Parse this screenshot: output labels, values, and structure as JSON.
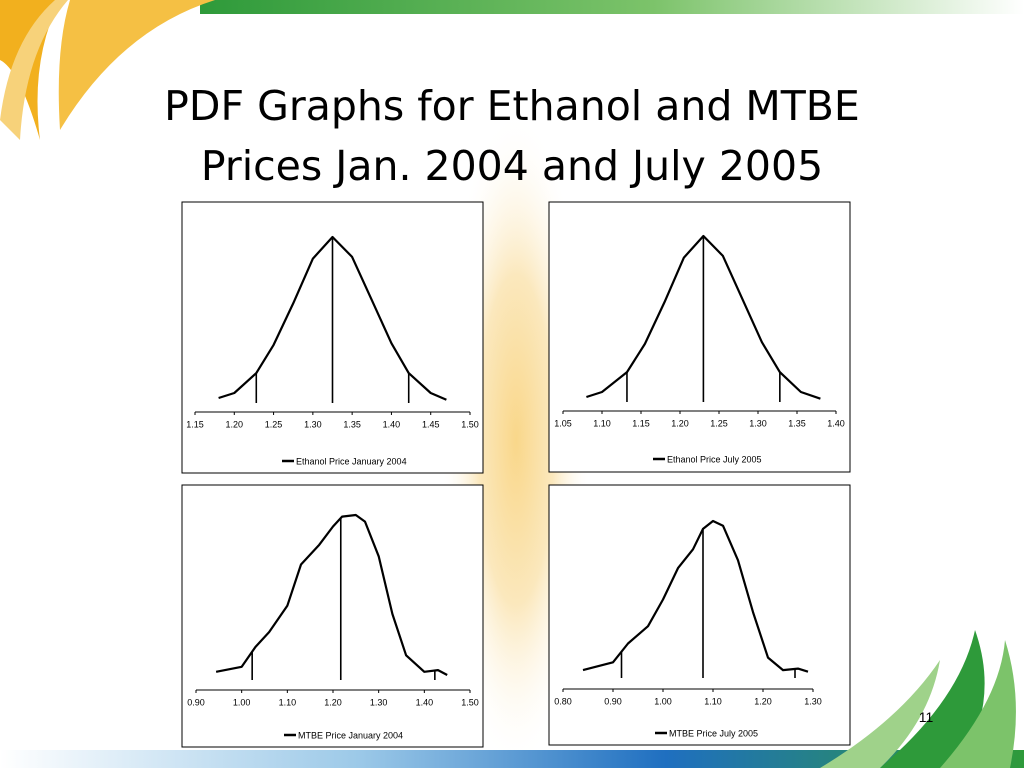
{
  "title": [
    "PDF Graphs for Ethanol and MTBE",
    "Prices Jan. 2004 and July 2005"
  ],
  "page_number": "11",
  "chart_data": [
    {
      "type": "line",
      "xlim": [
        1.15,
        1.5
      ],
      "ylim": [
        0,
        1
      ],
      "xticks": [
        1.15,
        {
          "value": 1.2,
          "label": "1.20"
        },
        1.25,
        {
          "value": 1.3,
          "label": "1.30"
        },
        1.35,
        {
          "value": 1.4,
          "label": "1.40"
        },
        1.45,
        {
          "value": 1.5,
          "label": "1.50"
        }
      ],
      "x": [
        1.18,
        1.2,
        1.228,
        1.25,
        1.275,
        1.3,
        1.325,
        1.35,
        1.375,
        1.4,
        1.422,
        1.45,
        1.47
      ],
      "series": [
        {
          "name": "Ethanol Price January 2004",
          "color": "#000000",
          "values": [
            0.03,
            0.06,
            0.18,
            0.35,
            0.6,
            0.87,
            1.0,
            0.88,
            0.62,
            0.36,
            0.18,
            0.06,
            0.02
          ]
        }
      ],
      "markers": [
        1.228,
        1.325,
        1.422
      ]
    },
    {
      "type": "line",
      "xlim": [
        1.05,
        1.4
      ],
      "ylim": [
        0,
        1
      ],
      "xticks": [
        1.05,
        {
          "value": 1.1,
          "label": "1.10"
        },
        1.15,
        {
          "value": 1.2,
          "label": "1.20"
        },
        1.25,
        {
          "value": 1.3,
          "label": "1.30"
        },
        1.35,
        {
          "value": 1.4,
          "label": "1.40"
        }
      ],
      "x": [
        1.08,
        1.1,
        1.132,
        1.155,
        1.18,
        1.205,
        1.23,
        1.255,
        1.28,
        1.305,
        1.328,
        1.355,
        1.38
      ],
      "series": [
        {
          "name": "Ethanol Price July 2005",
          "color": "#000000",
          "values": [
            0.03,
            0.06,
            0.18,
            0.35,
            0.6,
            0.87,
            1.0,
            0.88,
            0.62,
            0.36,
            0.18,
            0.06,
            0.02
          ]
        }
      ],
      "markers": [
        1.132,
        1.23,
        1.328
      ]
    },
    {
      "type": "line",
      "xlim": [
        0.9,
        1.5
      ],
      "ylim": [
        0,
        1
      ],
      "xticks": [
        {
          "value": 0.9,
          "label": "0.90"
        },
        {
          "value": 1.0,
          "label": "1.00"
        },
        {
          "value": 1.1,
          "label": "1.10"
        },
        {
          "value": 1.2,
          "label": "1.20"
        },
        {
          "value": 1.3,
          "label": "1.30"
        },
        {
          "value": 1.4,
          "label": "1.40"
        },
        {
          "value": 1.5,
          "label": "1.50"
        }
      ],
      "x": [
        0.944,
        1.0,
        1.03,
        1.06,
        1.1,
        1.13,
        1.17,
        1.2,
        1.22,
        1.25,
        1.27,
        1.3,
        1.33,
        1.36,
        1.4,
        1.43,
        1.45
      ],
      "series": [
        {
          "name": "MTBE Price January 2004",
          "color": "#000000",
          "values": [
            0.05,
            0.08,
            0.2,
            0.29,
            0.45,
            0.7,
            0.82,
            0.93,
            0.99,
            1.0,
            0.96,
            0.75,
            0.4,
            0.15,
            0.05,
            0.06,
            0.03
          ]
        }
      ],
      "markers": [
        1.023,
        1.217,
        1.423
      ]
    },
    {
      "type": "line",
      "xlim": [
        0.8,
        1.3
      ],
      "ylim": [
        0,
        1
      ],
      "xticks": [
        {
          "value": 0.8,
          "label": "0.80"
        },
        {
          "value": 0.9,
          "label": "0.90"
        },
        {
          "value": 1.0,
          "label": "1.00"
        },
        {
          "value": 1.1,
          "label": "1.10"
        },
        {
          "value": 1.2,
          "label": "1.20"
        },
        {
          "value": 1.3,
          "label": "1.30"
        }
      ],
      "x": [
        0.84,
        0.9,
        0.93,
        0.97,
        1.0,
        1.03,
        1.06,
        1.08,
        1.1,
        1.12,
        1.15,
        1.18,
        1.21,
        1.24,
        1.27,
        1.29
      ],
      "series": [
        {
          "name": "MTBE Price July 2005",
          "color": "#000000",
          "values": [
            0.05,
            0.1,
            0.22,
            0.33,
            0.5,
            0.7,
            0.82,
            0.95,
            1.0,
            0.97,
            0.75,
            0.42,
            0.13,
            0.05,
            0.06,
            0.04
          ]
        }
      ],
      "markers": [
        0.917,
        1.08,
        1.264
      ]
    }
  ]
}
